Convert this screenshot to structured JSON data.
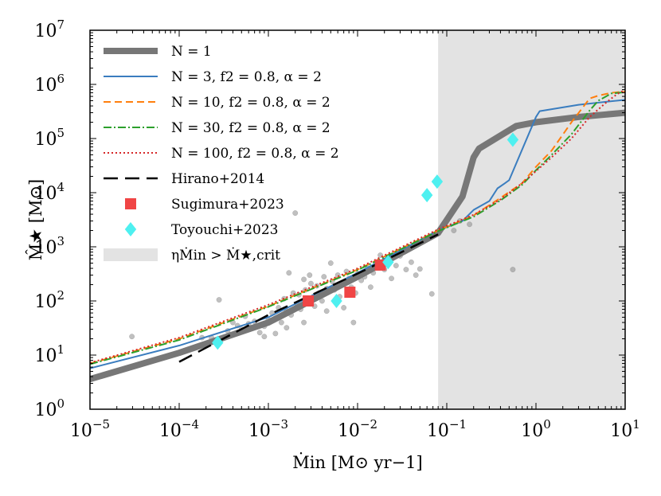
{
  "chart_data": {
    "type": "line",
    "title": "",
    "xscale": "log",
    "yscale": "log",
    "xlim": [
      1e-05,
      10
    ],
    "ylim": [
      1,
      10000000.0
    ],
    "xlabel_html": "<tspan font-style='italic'>Ṁ</tspan><tspan font-size='14' dy='5'>in</tspan><tspan dy='-5'> [M</tspan><tspan font-size='14' dy='5'>⊙</tspan><tspan dy='-5'> yr</tspan><tspan font-size='14' dy='-8'>−1</tspan><tspan dy='8'>]</tspan>",
    "xlabel": "Ṁin [M⊙ yr−1]",
    "ylabel": "M̂★ [M⊙]",
    "x_ticks": [
      {
        "value": 1e-05,
        "base": "10",
        "exp": "−5"
      },
      {
        "value": 0.0001,
        "base": "10",
        "exp": "−4"
      },
      {
        "value": 0.001,
        "base": "10",
        "exp": "−3"
      },
      {
        "value": 0.01,
        "base": "10",
        "exp": "−2"
      },
      {
        "value": 0.1,
        "base": "10",
        "exp": "−1"
      },
      {
        "value": 1,
        "base": "10",
        "exp": "0"
      },
      {
        "value": 10,
        "base": "10",
        "exp": "1"
      }
    ],
    "y_ticks": [
      {
        "value": 1,
        "base": "10",
        "exp": "0"
      },
      {
        "value": 10,
        "base": "10",
        "exp": "1"
      },
      {
        "value": 100,
        "base": "10",
        "exp": "2"
      },
      {
        "value": 1000,
        "base": "10",
        "exp": "3"
      },
      {
        "value": 10000,
        "base": "10",
        "exp": "4"
      },
      {
        "value": 100000,
        "base": "10",
        "exp": "5"
      },
      {
        "value": 1000000,
        "base": "10",
        "exp": "6"
      },
      {
        "value": 10000000,
        "base": "10",
        "exp": "7"
      }
    ],
    "shaded_region": {
      "x_from": 0.08,
      "x_to": 10,
      "color": "#e3e3e3",
      "label": "ηṀin > Ṁ★,crit"
    },
    "series": [
      {
        "name": "N = 1",
        "color": "#777777",
        "width": 8,
        "dash": "",
        "x": [
          1e-05,
          0.0001,
          0.001,
          0.01,
          0.08,
          0.15,
          0.2,
          0.23,
          0.6,
          1,
          3,
          10
        ],
        "y": [
          3.6,
          11,
          40,
          280,
          1800,
          8500,
          45000,
          65000,
          170000,
          200000,
          250000,
          300000
        ]
      },
      {
        "name": "N = 3, f2 = 0.8, α = 2",
        "color": "#3a7dbf",
        "width": 2,
        "dash": "",
        "x": [
          1e-05,
          0.0001,
          0.001,
          0.01,
          0.08,
          0.15,
          0.2,
          0.3,
          0.37,
          0.45,
          0.5,
          1.0,
          1.1,
          3,
          10
        ],
        "y": [
          5.7,
          15,
          50,
          330,
          2000,
          3000,
          4800,
          7000,
          12000,
          15000,
          17000,
          250000,
          320000,
          420000,
          520000
        ]
      },
      {
        "name": "N = 10, f2 = 0.8, α = 2",
        "color": "#ff7f0e",
        "width": 2,
        "dash": "9,5",
        "x": [
          1e-05,
          0.0001,
          0.001,
          0.01,
          0.08,
          0.2,
          0.4,
          0.7,
          1.0,
          1.5,
          2.5,
          4,
          5,
          7,
          10
        ],
        "y": [
          7,
          20,
          80,
          380,
          2000,
          3800,
          8000,
          15000,
          30000,
          60000,
          200000,
          550000,
          620000,
          700000,
          740000
        ]
      },
      {
        "name": "N = 30, f2 = 0.8, α = 2",
        "color": "#2ca02c",
        "width": 2,
        "dash": "10,3,2,3",
        "x": [
          1e-05,
          0.0001,
          0.001,
          0.01,
          0.08,
          0.2,
          0.4,
          0.7,
          1.0,
          1.5,
          2.5,
          4,
          5,
          7,
          10
        ],
        "y": [
          6.8,
          19,
          78,
          370,
          1950,
          3600,
          7200,
          14000,
          26000,
          50000,
          120000,
          330000,
          500000,
          680000,
          720000
        ]
      },
      {
        "name": "N = 100, f2 = 0.8, α = 2",
        "color": "#d62728",
        "width": 2,
        "dash": "2,3",
        "x": [
          1e-05,
          0.0001,
          0.001,
          0.01,
          0.08,
          0.2,
          0.4,
          0.7,
          1.0,
          1.5,
          2.5,
          4,
          6,
          8,
          10
        ],
        "y": [
          7.2,
          21,
          85,
          400,
          2100,
          3900,
          7500,
          15000,
          25000,
          45000,
          100000,
          250000,
          450000,
          650000,
          800000
        ]
      },
      {
        "name": "Hirano+2014",
        "color": "#000000",
        "width": 2.5,
        "dash": "18,9",
        "x": [
          0.0001,
          0.001,
          0.01,
          0.08
        ],
        "y": [
          7.5,
          55,
          320,
          1700
        ]
      }
    ],
    "markers": [
      {
        "name": "Sugimura+2023",
        "shape": "square",
        "color": "#f04545",
        "points": [
          [
            0.0028,
            100
          ],
          [
            0.0082,
            145
          ],
          [
            0.018,
            460
          ]
        ]
      },
      {
        "name": "Toyouchi+2023",
        "shape": "diamond",
        "color": "#4ef0f0",
        "points": [
          [
            0.00027,
            17
          ],
          [
            0.0058,
            100
          ],
          [
            0.022,
            520
          ],
          [
            0.06,
            9000
          ],
          [
            0.078,
            16000
          ],
          [
            0.55,
            95000
          ]
        ]
      }
    ],
    "scatter_gray": {
      "color": "#8c8c8c",
      "points": [
        [
          2.95e-05,
          22
        ],
        [
          0.00018,
          21
        ],
        [
          0.00023,
          21
        ],
        [
          0.00028,
          105
        ],
        [
          0.00035,
          28
        ],
        [
          0.0004,
          40
        ],
        [
          0.00045,
          35
        ],
        [
          0.0005,
          30
        ],
        [
          0.00055,
          52
        ],
        [
          0.0006,
          38
        ],
        [
          0.0007,
          42
        ],
        [
          0.0008,
          26
        ],
        [
          0.0009,
          34
        ],
        [
          0.001,
          45
        ],
        [
          0.0011,
          60
        ],
        [
          0.0012,
          48
        ],
        [
          0.0013,
          75
        ],
        [
          0.0014,
          40
        ],
        [
          0.0015,
          110
        ],
        [
          0.0016,
          65
        ],
        [
          0.0017,
          330
        ],
        [
          0.0018,
          55
        ],
        [
          0.002,
          4200
        ],
        [
          0.0021,
          85
        ],
        [
          0.0022,
          130
        ],
        [
          0.0023,
          70
        ],
        [
          0.0025,
          250
        ],
        [
          0.0026,
          160
        ],
        [
          0.0027,
          95
        ],
        [
          0.003,
          210
        ],
        [
          0.0032,
          120
        ],
        [
          0.0035,
          190
        ],
        [
          0.0037,
          140
        ],
        [
          0.004,
          100
        ],
        [
          0.0042,
          280
        ],
        [
          0.0045,
          170
        ],
        [
          0.005,
          500
        ],
        [
          0.0052,
          230
        ],
        [
          0.0055,
          160
        ],
        [
          0.006,
          300
        ],
        [
          0.0063,
          120
        ],
        [
          0.0068,
          200
        ],
        [
          0.007,
          75
        ],
        [
          0.0075,
          350
        ],
        [
          0.008,
          260
        ],
        [
          0.0085,
          180
        ],
        [
          0.009,
          40
        ],
        [
          0.0095,
          140
        ],
        [
          0.01,
          320
        ],
        [
          0.011,
          240
        ],
        [
          0.012,
          280
        ],
        [
          0.013,
          410
        ],
        [
          0.014,
          180
        ],
        [
          0.015,
          330
        ],
        [
          0.017,
          520
        ],
        [
          0.018,
          700
        ],
        [
          0.02,
          380
        ],
        [
          0.022,
          600
        ],
        [
          0.024,
          260
        ],
        [
          0.027,
          450
        ],
        [
          0.03,
          680
        ],
        [
          0.035,
          380
        ],
        [
          0.04,
          520
        ],
        [
          0.045,
          300
        ],
        [
          0.05,
          390
        ],
        [
          0.068,
          135
        ],
        [
          0.12,
          2000
        ],
        [
          0.14,
          3000
        ],
        [
          0.18,
          2600
        ],
        [
          0.55,
          380
        ],
        [
          0.0045,
          65
        ],
        [
          0.0012,
          25
        ],
        [
          0.0009,
          22
        ],
        [
          0.0016,
          32
        ],
        [
          0.0025,
          40
        ],
        [
          0.0033,
          80
        ],
        [
          0.0019,
          140
        ],
        [
          0.0029,
          300
        ]
      ]
    },
    "legend": {
      "position": "top-left",
      "entries": [
        {
          "label": "N = 1",
          "kind": "line",
          "series": 0
        },
        {
          "label": "N = 3, f2 = 0.8, α = 2",
          "kind": "line",
          "series": 1
        },
        {
          "label": "N = 10, f2 = 0.8, α = 2",
          "kind": "line",
          "series": 2
        },
        {
          "label": "N = 30, f2 = 0.8, α = 2",
          "kind": "line",
          "series": 3
        },
        {
          "label": "N = 100, f2 = 0.8, α = 2",
          "kind": "line",
          "series": 4
        },
        {
          "label": "Hirano+2014",
          "kind": "line",
          "series": 5
        },
        {
          "label": "Sugimura+2023",
          "kind": "square",
          "color": "#f04545"
        },
        {
          "label": "Toyouchi+2023",
          "kind": "diamond",
          "color": "#4ef0f0"
        },
        {
          "label": "ηṀin > Ṁ★,crit",
          "kind": "patch",
          "color": "#e3e3e3"
        }
      ]
    }
  }
}
